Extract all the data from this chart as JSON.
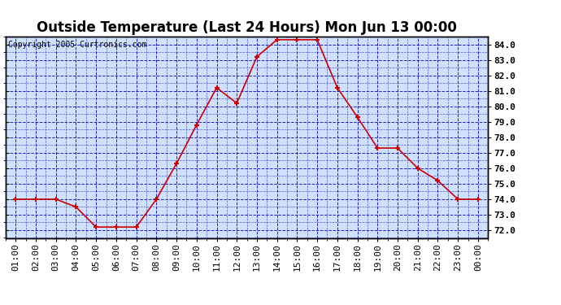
{
  "title": "Outside Temperature (Last 24 Hours) Mon Jun 13 00:00",
  "copyright": "Copyright 2005 Curtronics.com",
  "x_labels": [
    "01:00",
    "02:00",
    "03:00",
    "04:00",
    "05:00",
    "06:00",
    "07:00",
    "08:00",
    "09:00",
    "10:00",
    "11:00",
    "12:00",
    "13:00",
    "14:00",
    "15:00",
    "16:00",
    "17:00",
    "18:00",
    "19:00",
    "20:00",
    "21:00",
    "22:00",
    "23:00",
    "00:00"
  ],
  "y_values": [
    74.0,
    74.0,
    74.0,
    73.5,
    72.2,
    72.2,
    72.2,
    74.0,
    76.3,
    78.8,
    81.2,
    80.2,
    83.2,
    84.3,
    84.3,
    84.3,
    81.2,
    79.3,
    77.3,
    77.3,
    76.0,
    75.2,
    74.0,
    74.0
  ],
  "ylim": [
    72.0,
    84.0
  ],
  "yticks": [
    72.0,
    73.0,
    74.0,
    75.0,
    76.0,
    77.0,
    78.0,
    79.0,
    80.0,
    81.0,
    82.0,
    83.0,
    84.0
  ],
  "line_color": "#cc0000",
  "marker_color": "#cc0000",
  "bg_color": "#d0e0ff",
  "outer_bg": "#ffffff",
  "grid_color": "#0000bb",
  "title_fontsize": 12,
  "copyright_fontsize": 7,
  "axis_label_fontsize": 8,
  "tick_label_fontsize": 8
}
